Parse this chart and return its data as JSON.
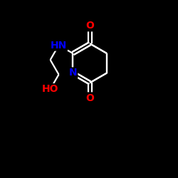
{
  "background_color": "#000000",
  "bond_color": "#ffffff",
  "O_color": "#ff0000",
  "N_color": "#0000ff",
  "figsize": [
    2.5,
    2.5
  ],
  "dpi": 100,
  "xlim": [
    0,
    10
  ],
  "ylim": [
    0,
    10
  ],
  "bond_lw": 1.6,
  "font_size": 10,
  "bl": 1.1
}
